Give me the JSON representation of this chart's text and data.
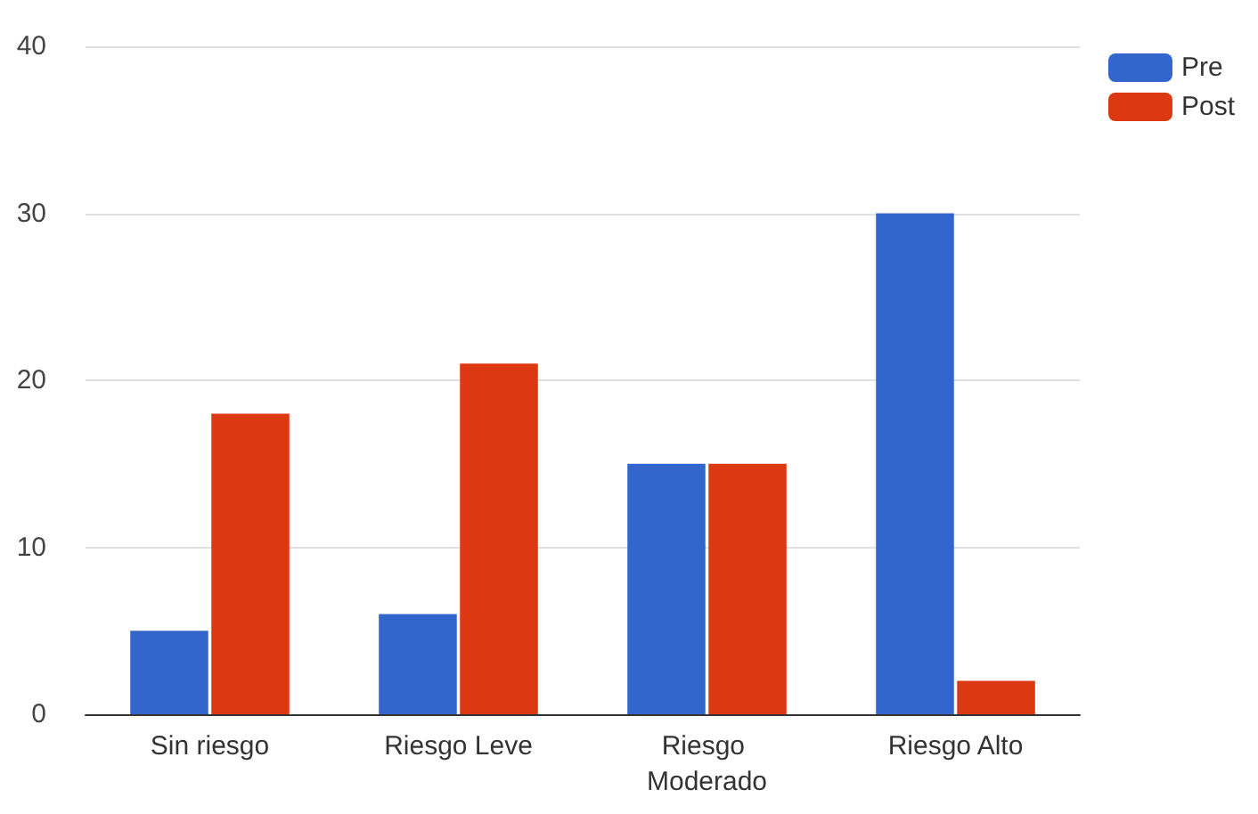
{
  "chart_data": {
    "type": "bar",
    "categories": [
      "Sin riesgo",
      "Riesgo Leve",
      "Riesgo Moderado",
      "Riesgo Alto"
    ],
    "series": [
      {
        "name": "Pre",
        "color": "#3366cc",
        "values": [
          5,
          6,
          15,
          30
        ]
      },
      {
        "name": "Post",
        "color": "#dc3912",
        "values": [
          18,
          21,
          15,
          2
        ]
      }
    ],
    "ylim": [
      0,
      40
    ],
    "yticks": [
      0,
      10,
      20,
      30,
      40
    ],
    "grid": "y",
    "legend": "top right"
  }
}
